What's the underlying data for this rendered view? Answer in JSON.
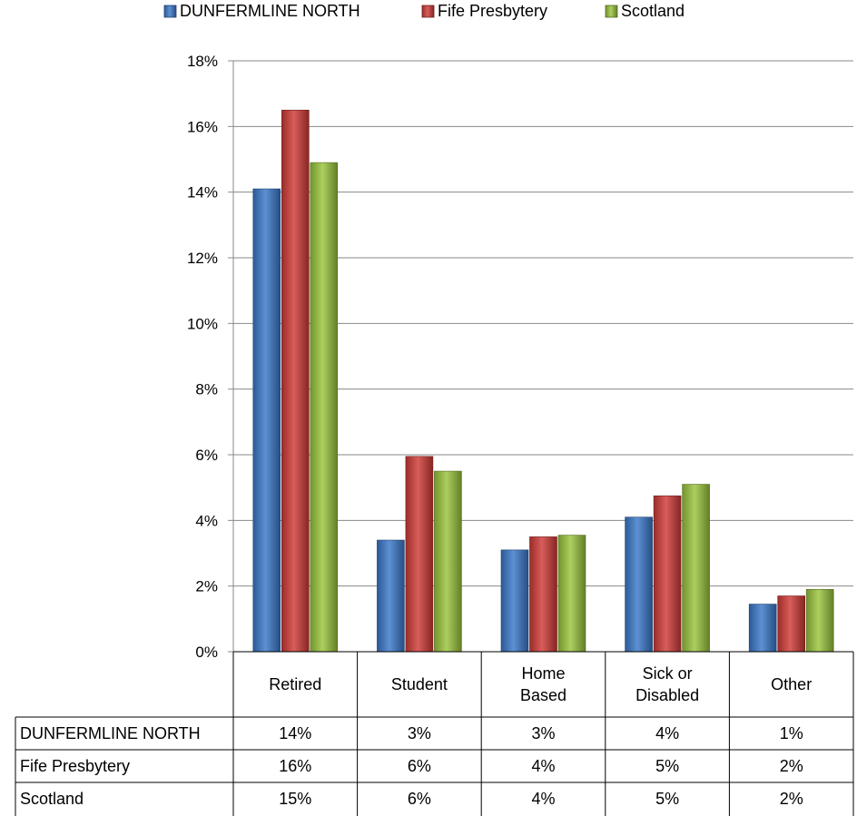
{
  "chart_data": {
    "type": "bar",
    "title": "",
    "xlabel": "",
    "ylabel": "",
    "categories": [
      "Retired",
      "Student",
      "Home Based",
      "Sick or Disabled",
      "Other"
    ],
    "category_lines": [
      [
        "Retired"
      ],
      [
        "Student"
      ],
      [
        "Home",
        "Based"
      ],
      [
        "Sick or",
        "Disabled"
      ],
      [
        "Other"
      ]
    ],
    "series": [
      {
        "name": "DUNFERMLINE NORTH",
        "color": "#3a78c9",
        "values": [
          14.1,
          3.4,
          3.1,
          4.1,
          1.45
        ],
        "table_labels": [
          "14%",
          "3%",
          "3%",
          "4%",
          "1%"
        ]
      },
      {
        "name": "Fife Presbytery",
        "color": "#cf3a36",
        "values": [
          16.5,
          5.95,
          3.5,
          4.75,
          1.7
        ],
        "table_labels": [
          "16%",
          "6%",
          "4%",
          "5%",
          "2%"
        ]
      },
      {
        "name": "Scotland",
        "color": "#9ac43c",
        "values": [
          14.9,
          5.5,
          3.55,
          5.1,
          1.9
        ],
        "table_labels": [
          "15%",
          "6%",
          "4%",
          "5%",
          "2%"
        ]
      }
    ],
    "ylim": [
      0,
      18
    ],
    "yticks": [
      "0%",
      "2%",
      "4%",
      "6%",
      "8%",
      "10%",
      "12%",
      "14%",
      "16%",
      "18%"
    ],
    "grid": true,
    "legend_position": "top",
    "data_table": true
  }
}
